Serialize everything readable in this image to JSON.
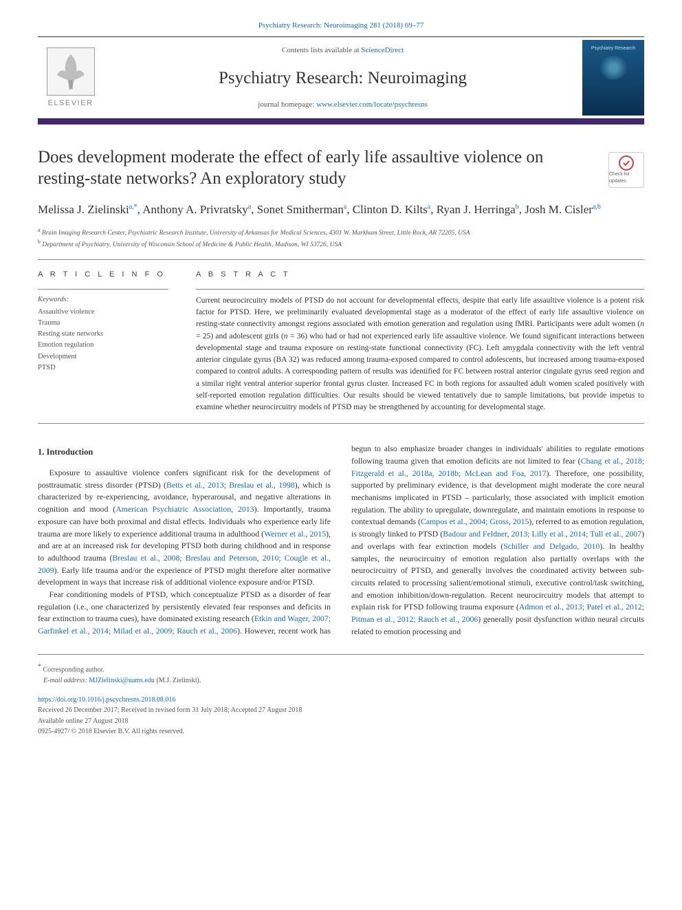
{
  "meta": {
    "citation_label": "Psychiatry Research: Neuroimaging 281 (2018) 69–77",
    "contents_prefix": "Contents lists available at ",
    "contents_link": "ScienceDirect",
    "journal_name": "Psychiatry Research: Neuroimaging",
    "homepage_prefix": "journal homepage: ",
    "homepage_link": "www.elsevier.com/locate/psychresns",
    "elsevier_label": "ELSEVIER",
    "cover_label": "Psychiatry Research",
    "check_updates": "Check for updates",
    "accent_color": "#43266d",
    "link_color": "#1a6bb0"
  },
  "title": "Does development moderate the effect of early life assaultive violence on resting-state networks? An exploratory study",
  "authors_text": "Melissa J. Zielinski",
  "authors": [
    {
      "name": "Melissa J. Zielinski",
      "marks": "a,*"
    },
    {
      "name": "Anthony A. Privratsky",
      "marks": "a"
    },
    {
      "name": "Sonet Smitherman",
      "marks": "a"
    },
    {
      "name": "Clinton D. Kilts",
      "marks": "a"
    },
    {
      "name": "Ryan J. Herringa",
      "marks": "b"
    },
    {
      "name": "Josh M. Cisler",
      "marks": "a,b"
    }
  ],
  "affiliations": [
    {
      "mark": "a",
      "text": "Brain Imaging Research Center, Psychiatric Research Institute, University of Arkansas for Medical Sciences, 4301 W. Markham Street, Little Rock, AR 72205, USA"
    },
    {
      "mark": "b",
      "text": "Department of Psychiatry, University of Wisconsin School of Medicine & Public Health, Madison, WI 53726, USA"
    }
  ],
  "info": {
    "section_label": "A R T I C L E  I N F O",
    "keywords_label": "Keywords:",
    "keywords": [
      "Assaultive violence",
      "Trauma",
      "Resting state networks",
      "Emotion regulation",
      "Development",
      "PTSD"
    ]
  },
  "abstract": {
    "section_label": "A B S T R A C T",
    "text": "Current neurocircuitry models of PTSD do not account for developmental effects, despite that early life assaultive violence is a potent risk factor for PTSD. Here, we preliminarily evaluated developmental stage as a moderator of the effect of early life assaultive violence on resting-state connectivity amongst regions associated with emotion generation and regulation using fMRI. Participants were adult women (n = 25) and adolescent girls (n = 36) who had or had not experienced early life assaultive violence. We found significant interactions between developmental stage and trauma exposure on resting-state functional connectivity (FC). Left amygdala connectivity with the left ventral anterior cingulate gyrus (BA 32) was reduced among trauma-exposed compared to control adolescents, but increased among trauma-exposed compared to control adults. A corresponding pattern of results was identified for FC between rostral anterior cingulate gyrus seed region and a similar right ventral anterior superior frontal gyrus cluster. Increased FC in both regions for assaulted adult women scaled positively with self-reported emotion regulation difficulties. Our results should be viewed tentatively due to sample limitations, but provide impetus to examine whether neurocircuitry models of PTSD may be strengthened by accounting for developmental stage."
  },
  "body": {
    "section_number": "1.",
    "section_title": "Introduction",
    "p1_pre": "Exposure to assaultive violence confers significant risk for the development of posttraumatic stress disorder (PTSD) (",
    "p1_ref1": "Betts et al., 2013; Breslau et al., 1998",
    "p1_mid1": "), which is characterized by re-experiencing, avoidance, hyperarousal, and negative alterations in cognition and mood (",
    "p1_ref2": "American Psychiatric Association, 2013",
    "p1_mid2": "). Importantly, trauma exposure can have both proximal and distal effects. Individuals who experience early life trauma are more likely to experience additional trauma in adulthood (",
    "p1_ref3": "Werner et al., 2015",
    "p1_mid3": "), and are at an increased risk for developing PTSD both during childhood and in response to adulthood trauma (",
    "p1_ref4": "Breslau et al., 2008; Breslau and Peterson, 2010; Cougle et al., 2009",
    "p1_end": "). Early life trauma and/or the experience of PTSD might therefore alter normative development in ways that increase risk of additional violence exposure and/or PTSD.",
    "p2_pre": "Fear conditioning models of PTSD, which conceptualize PTSD as a disorder of fear regulation (i.e., one characterized by persistently elevated fear responses and deficits in fear extinction to trauma cues), have dominated existing research (",
    "p2_ref1": "Etkin and Wager, 2007; Garfinkel et al., 2014; Milad et al., 2009; Rauch et al., 2006",
    "p2_mid1": "). However, recent work has begun to also emphasize broader changes in individuals' abilities to regulate emotions following trauma given that emotion deficits are not limited to fear (",
    "p2_ref2": "Chang et al., 2018; Fitzgerald et al., 2018a, 2018b; McLean and Foa, 2017",
    "p2_mid2": "). Therefore, one possibility, supported by preliminary evidence, is that development might moderate the core neural mechanisms implicated in PTSD – particularly, those associated with implicit emotion regulation. The ability to upregulate, downregulate, and maintain emotions in response to contextual demands (",
    "p2_ref3": "Campos et al., 2004; Gross, 2015",
    "p2_mid3": "), referred to as emotion regulation, is strongly linked to PTSD (",
    "p2_ref4": "Badour and Feldner, 2013; Lilly et al., 2014; Tull et al., 2007",
    "p2_mid4": ") and overlaps with fear extinction models (",
    "p2_ref5": "Schiller and Delgado, 2010",
    "p2_mid5": "). In healthy samples, the neurocircuitry of emotion regulation also partially overlaps with the neurocircuitry of PTSD, and generally involves the coordinated activity between sub-circuits related to processing salient/emotional stimuli, executive control/task switching, and emotion inhibition/down-regulation. Recent neurocircuitry models that attempt to explain risk for PTSD following trauma exposure (",
    "p2_ref6": "Admon et al., 2013; Patel et al., 2012; Pitman et al., 2012; Rauch et al., 2006",
    "p2_end": ") generally posit dysfunction within neural circuits related to emotion processing and"
  },
  "footer": {
    "corresponding": "Corresponding author.",
    "corresponding_mark": "*",
    "email_label": "E-mail address:",
    "email": "MJZielinski@uams.edu",
    "email_attrib": "(M.J. Zielinski).",
    "doi": "https://doi.org/10.1016/j.pscychresns.2018.08.016",
    "received": "Received 26 December 2017; Received in revised form 31 July 2018; Accepted 27 August 2018",
    "online": "Available online 27 August 2018",
    "copyright": "0925-4927/ © 2018 Elsevier B.V. All rights reserved."
  }
}
